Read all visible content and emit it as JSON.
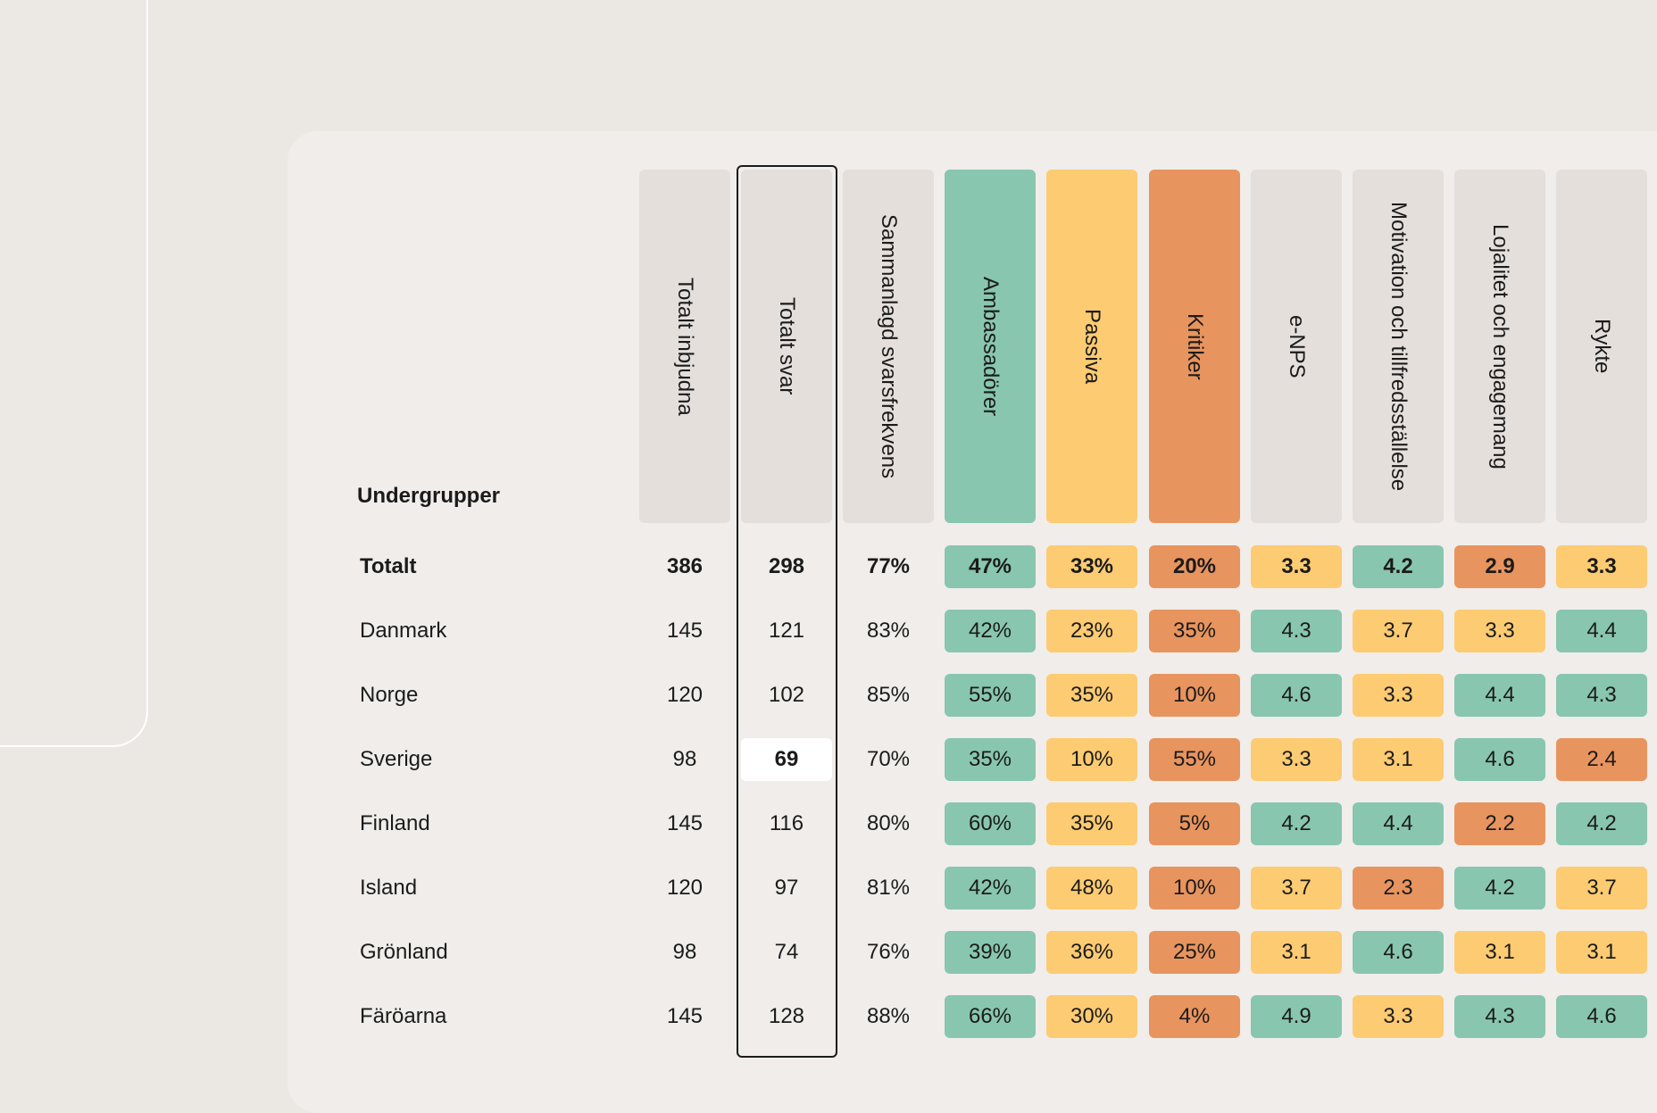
{
  "colors": {
    "green": "#88c6b0",
    "yellow": "#fdcb72",
    "orange": "#e8945e",
    "neutral": "#e5dfdb"
  },
  "table": {
    "subgroup_title": "Undergrupper",
    "headers": [
      {
        "label": "Totalt inbjudna",
        "color": "neutral"
      },
      {
        "label": "Totalt svar",
        "color": "neutral"
      },
      {
        "label": "Sammanlagd svarsfrekvens",
        "color": "neutral"
      },
      {
        "label": "Ambassadörer",
        "color": "green"
      },
      {
        "label": "Passiva",
        "color": "yellow"
      },
      {
        "label": "Kritiker",
        "color": "orange"
      },
      {
        "label": "e-NPS",
        "color": "neutral"
      },
      {
        "label": "Motivation och tillfredsställelse",
        "color": "neutral"
      },
      {
        "label": "Lojalitet och engagemang",
        "color": "neutral"
      },
      {
        "label": "Rykte",
        "color": "neutral"
      }
    ],
    "rows": [
      {
        "label": "Totalt",
        "bold": true,
        "cells": [
          [
            "386",
            "none"
          ],
          [
            "298",
            "none"
          ],
          [
            "77%",
            "none"
          ],
          [
            "47%",
            "green"
          ],
          [
            "33%",
            "yellow"
          ],
          [
            "20%",
            "orange"
          ],
          [
            "3.3",
            "yellow"
          ],
          [
            "4.2",
            "green"
          ],
          [
            "2.9",
            "orange"
          ],
          [
            "3.3",
            "yellow"
          ]
        ]
      },
      {
        "label": "Danmark",
        "bold": false,
        "cells": [
          [
            "145",
            "none"
          ],
          [
            "121",
            "none"
          ],
          [
            "83%",
            "none"
          ],
          [
            "42%",
            "green"
          ],
          [
            "23%",
            "yellow"
          ],
          [
            "35%",
            "orange"
          ],
          [
            "4.3",
            "green"
          ],
          [
            "3.7",
            "yellow"
          ],
          [
            "3.3",
            "yellow"
          ],
          [
            "4.4",
            "green"
          ]
        ]
      },
      {
        "label": "Norge",
        "bold": false,
        "cells": [
          [
            "120",
            "none"
          ],
          [
            "102",
            "none"
          ],
          [
            "85%",
            "none"
          ],
          [
            "55%",
            "green"
          ],
          [
            "35%",
            "yellow"
          ],
          [
            "10%",
            "orange"
          ],
          [
            "4.6",
            "green"
          ],
          [
            "3.3",
            "yellow"
          ],
          [
            "4.4",
            "green"
          ],
          [
            "4.3",
            "green"
          ]
        ]
      },
      {
        "label": "Sverige",
        "bold": false,
        "cells": [
          [
            "98",
            "none"
          ],
          [
            "69",
            "white"
          ],
          [
            "70%",
            "none"
          ],
          [
            "35%",
            "green"
          ],
          [
            "10%",
            "yellow"
          ],
          [
            "55%",
            "orange"
          ],
          [
            "3.3",
            "yellow"
          ],
          [
            "3.1",
            "yellow"
          ],
          [
            "4.6",
            "green"
          ],
          [
            "2.4",
            "orange"
          ]
        ]
      },
      {
        "label": "Finland",
        "bold": false,
        "cells": [
          [
            "145",
            "none"
          ],
          [
            "116",
            "none"
          ],
          [
            "80%",
            "none"
          ],
          [
            "60%",
            "green"
          ],
          [
            "35%",
            "yellow"
          ],
          [
            "5%",
            "orange"
          ],
          [
            "4.2",
            "green"
          ],
          [
            "4.4",
            "green"
          ],
          [
            "2.2",
            "orange"
          ],
          [
            "4.2",
            "green"
          ]
        ]
      },
      {
        "label": "Island",
        "bold": false,
        "cells": [
          [
            "120",
            "none"
          ],
          [
            "97",
            "none"
          ],
          [
            "81%",
            "none"
          ],
          [
            "42%",
            "green"
          ],
          [
            "48%",
            "yellow"
          ],
          [
            "10%",
            "orange"
          ],
          [
            "3.7",
            "yellow"
          ],
          [
            "2.3",
            "orange"
          ],
          [
            "4.2",
            "green"
          ],
          [
            "3.7",
            "yellow"
          ]
        ]
      },
      {
        "label": "Grönland",
        "bold": false,
        "cells": [
          [
            "98",
            "none"
          ],
          [
            "74",
            "none"
          ],
          [
            "76%",
            "none"
          ],
          [
            "39%",
            "green"
          ],
          [
            "36%",
            "yellow"
          ],
          [
            "25%",
            "orange"
          ],
          [
            "3.1",
            "yellow"
          ],
          [
            "4.6",
            "green"
          ],
          [
            "3.1",
            "yellow"
          ],
          [
            "3.1",
            "yellow"
          ]
        ]
      },
      {
        "label": "Färöarna",
        "bold": false,
        "cells": [
          [
            "145",
            "none"
          ],
          [
            "128",
            "none"
          ],
          [
            "88%",
            "none"
          ],
          [
            "66%",
            "green"
          ],
          [
            "30%",
            "yellow"
          ],
          [
            "4%",
            "orange"
          ],
          [
            "4.9",
            "green"
          ],
          [
            "3.3",
            "yellow"
          ],
          [
            "4.3",
            "green"
          ],
          [
            "4.6",
            "green"
          ]
        ]
      }
    ]
  }
}
